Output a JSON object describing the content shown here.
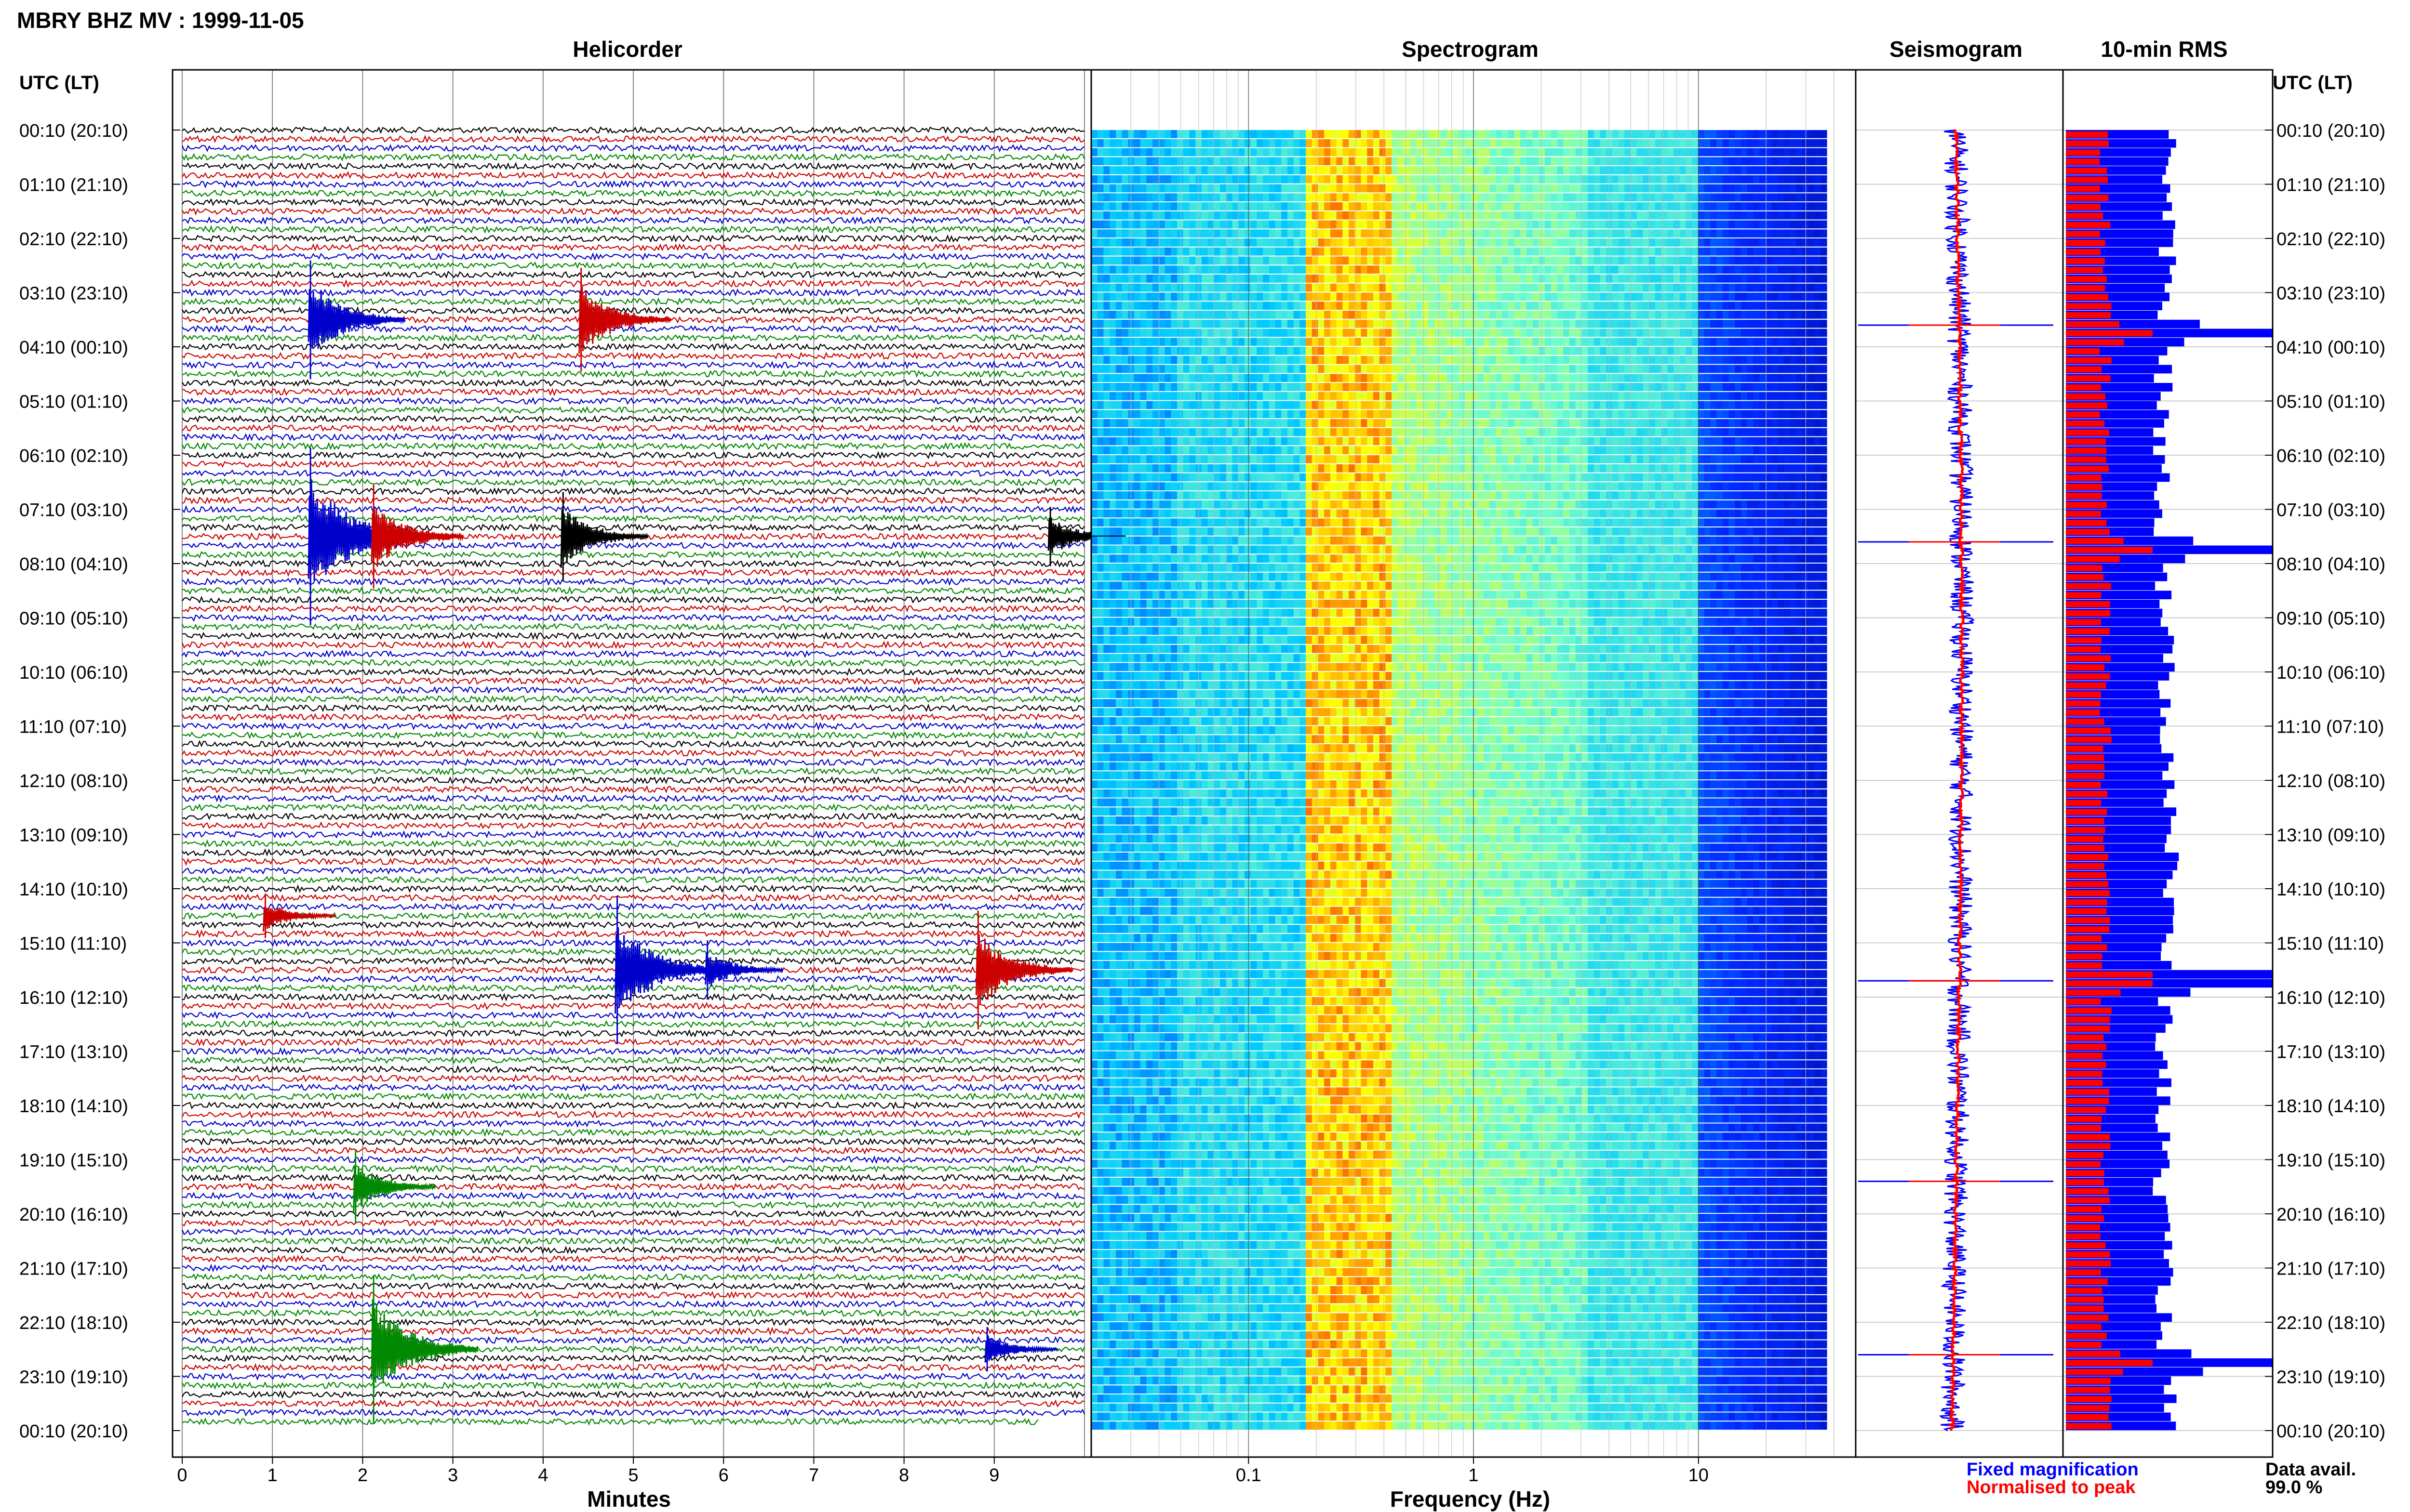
{
  "figure": {
    "title": "MBRY BHZ MV : 1999-11-05"
  },
  "row_labels": {
    "header": "UTC (LT)",
    "items": [
      "00:10 (20:10)",
      "01:10 (21:10)",
      "02:10 (22:10)",
      "03:10 (23:10)",
      "04:10 (00:10)",
      "05:10 (01:10)",
      "06:10 (02:10)",
      "07:10 (03:10)",
      "08:10 (04:10)",
      "09:10 (05:10)",
      "10:10 (06:10)",
      "11:10 (07:10)",
      "12:10 (08:10)",
      "13:10 (09:10)",
      "14:10 (10:10)",
      "15:10 (11:10)",
      "16:10 (12:10)",
      "17:10 (13:10)",
      "18:10 (14:10)",
      "19:10 (15:10)",
      "20:10 (16:10)",
      "21:10 (17:10)",
      "22:10 (18:10)",
      "23:10 (19:10)",
      "00:10 (20:10)"
    ]
  },
  "chart_data": [
    {
      "type": "line",
      "panel": "helicorder",
      "title": "Helicorder",
      "xlabel": "Minutes",
      "xlim": [
        0,
        10
      ],
      "xticks": [
        "0",
        "1",
        "2",
        "3",
        "4",
        "5",
        "6",
        "7",
        "8",
        "9"
      ],
      "trace_colors": [
        "#000000",
        "#cc0000",
        "#0000cc",
        "#008800"
      ],
      "events": [
        {
          "hour": 3.5,
          "minute": 1.4,
          "amplitude": 4.0,
          "color": "#0000cc"
        },
        {
          "hour": 3.5,
          "minute": 4.4,
          "amplitude": 3.5,
          "color": "#cc0000"
        },
        {
          "hour": 7.5,
          "minute": 1.4,
          "amplitude": 6.0,
          "color": "#0000cc"
        },
        {
          "hour": 7.5,
          "minute": 2.1,
          "amplitude": 3.5,
          "color": "#cc0000"
        },
        {
          "hour": 7.5,
          "minute": 4.2,
          "amplitude": 3.0,
          "color": "#000000"
        },
        {
          "hour": 7.5,
          "minute": 9.6,
          "amplitude": 2.0,
          "color": "#000000"
        },
        {
          "hour": 14.5,
          "minute": 0.9,
          "amplitude": 1.5,
          "color": "#cc0000"
        },
        {
          "hour": 15.5,
          "minute": 4.8,
          "amplitude": 5.0,
          "color": "#0000cc"
        },
        {
          "hour": 15.5,
          "minute": 5.8,
          "amplitude": 2.0,
          "color": "#0000cc"
        },
        {
          "hour": 15.5,
          "minute": 8.8,
          "amplitude": 4.0,
          "color": "#cc0000"
        },
        {
          "hour": 19.5,
          "minute": 1.9,
          "amplitude": 2.5,
          "color": "#008800"
        },
        {
          "hour": 22.5,
          "minute": 2.1,
          "amplitude": 5.0,
          "color": "#008800"
        },
        {
          "hour": 22.5,
          "minute": 8.9,
          "amplitude": 1.5,
          "color": "#0000cc"
        }
      ]
    },
    {
      "type": "heatmap",
      "panel": "spectrogram",
      "title": "Spectrogram",
      "xlabel": "Frequency (Hz)",
      "xscale": "log",
      "xlim": [
        0.02,
        50
      ],
      "xticks": [
        0.1,
        1,
        10
      ],
      "xtick_labels": [
        "0.1",
        "1",
        "10"
      ],
      "peak_band_hz": [
        0.2,
        0.5
      ]
    },
    {
      "type": "line",
      "panel": "seismogram",
      "title": "Seismogram",
      "events_hours": [
        3.6,
        7.6,
        15.7,
        19.4,
        22.6
      ]
    },
    {
      "type": "bar",
      "panel": "rms",
      "title": "10-min RMS",
      "series": [
        {
          "name": "Fixed magnification",
          "color": "#0000ff"
        },
        {
          "name": "Normalised to peak",
          "color": "#ff0000"
        }
      ],
      "peaks_hours": [
        3.7,
        7.7,
        15.6,
        22.7
      ]
    }
  ],
  "legend": {
    "fixed": "Fixed magnification",
    "normalised": "Normalised to peak",
    "fixed_color": "#0000ff",
    "normalised_color": "#ff0000"
  },
  "data_availability": {
    "label": "Data avail.",
    "value": "99.0 %"
  }
}
